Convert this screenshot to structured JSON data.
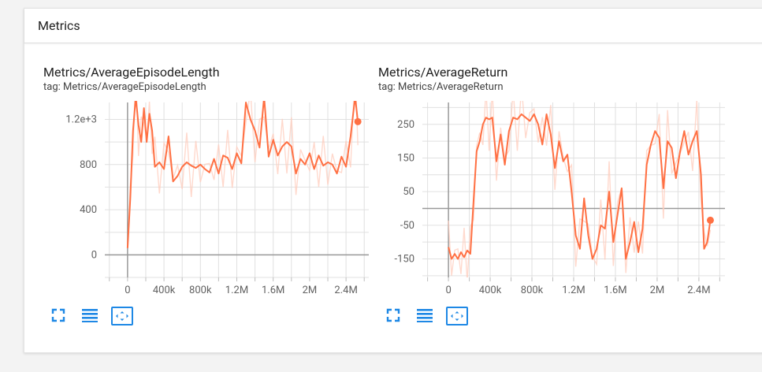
{
  "section": {
    "title": "Metrics"
  },
  "colors": {
    "line": "#ff7043",
    "line_raw": "#ffccbc",
    "grid": "#e0e0e0",
    "axis": "#999999",
    "icon": "#1e88e5"
  },
  "icons": [
    "fullscreen-icon",
    "toggle-log-scale-icon",
    "fit-domain-icon"
  ],
  "chart_data": [
    {
      "type": "line",
      "title": "Metrics/AverageEpisodeLength",
      "tag": "tag: Metrics/AverageEpisodeLength",
      "xlim": [
        -250000,
        2650000
      ],
      "ylim": [
        -200,
        1350
      ],
      "x_ticks": [
        0,
        400000,
        800000,
        1200000,
        1600000,
        2000000,
        2400000
      ],
      "x_tick_labels": [
        "0",
        "400k",
        "800k",
        "1.2M",
        "1.6M",
        "2M",
        "2.4M"
      ],
      "y_ticks": [
        0,
        400,
        800,
        1200
      ],
      "y_tick_labels": [
        "0",
        "400",
        "800",
        "1.2e+3"
      ],
      "series": [
        {
          "x": [
            0,
            30000,
            60000,
            90000,
            120000,
            150000,
            180000,
            210000,
            240000,
            270000,
            300000,
            350000,
            400000,
            450000,
            500000,
            550000,
            600000,
            650000,
            700000,
            750000,
            800000,
            850000,
            900000,
            950000,
            1000000,
            1050000,
            1100000,
            1150000,
            1200000,
            1250000,
            1300000,
            1350000,
            1400000,
            1450000,
            1500000,
            1550000,
            1600000,
            1650000,
            1700000,
            1750000,
            1800000,
            1850000,
            1900000,
            1950000,
            2000000,
            2050000,
            2100000,
            2150000,
            2200000,
            2250000,
            2300000,
            2350000,
            2400000,
            2450000,
            2500000,
            2530000
          ],
          "y": [
            60,
            500,
            1100,
            1400,
            1150,
            1000,
            1300,
            1000,
            1250,
            1100,
            780,
            820,
            760,
            1050,
            650,
            700,
            780,
            820,
            790,
            770,
            800,
            760,
            730,
            850,
            720,
            880,
            860,
            760,
            900,
            810,
            1350,
            1200,
            1100,
            950,
            1400,
            870,
            1020,
            880,
            960,
            1000,
            960,
            720,
            850,
            800,
            900,
            760,
            880,
            790,
            820,
            800,
            720,
            870,
            780,
            1050,
            1400,
            1180
          ]
        }
      ]
    },
    {
      "type": "line",
      "title": "Metrics/AverageReturn",
      "tag": "tag: Metrics/AverageReturn",
      "xlim": [
        -250000,
        2650000
      ],
      "ylim": [
        -205,
        315
      ],
      "x_ticks": [
        0,
        400000,
        800000,
        1200000,
        1600000,
        2000000,
        2400000
      ],
      "x_tick_labels": [
        "0",
        "400k",
        "800k",
        "1.2M",
        "1.6M",
        "2M",
        "2.4M"
      ],
      "y_ticks": [
        -150,
        -50,
        50,
        150,
        250
      ],
      "y_tick_labels": [
        "-150",
        "-50",
        "50",
        "150",
        "250"
      ],
      "series": [
        {
          "x": [
            0,
            30000,
            60000,
            90000,
            120000,
            150000,
            180000,
            210000,
            240000,
            270000,
            300000,
            330000,
            360000,
            390000,
            420000,
            460000,
            500000,
            540000,
            580000,
            620000,
            660000,
            700000,
            740000,
            780000,
            820000,
            860000,
            900000,
            940000,
            980000,
            1020000,
            1060000,
            1100000,
            1140000,
            1180000,
            1220000,
            1260000,
            1300000,
            1340000,
            1380000,
            1420000,
            1460000,
            1500000,
            1540000,
            1580000,
            1620000,
            1660000,
            1700000,
            1740000,
            1780000,
            1820000,
            1860000,
            1900000,
            1940000,
            1980000,
            2020000,
            2060000,
            2100000,
            2140000,
            2180000,
            2220000,
            2260000,
            2300000,
            2340000,
            2380000,
            2420000,
            2450000,
            2480000,
            2510000
          ],
          "y": [
            -115,
            -150,
            -135,
            -150,
            -130,
            -145,
            -125,
            -135,
            20,
            170,
            200,
            250,
            270,
            265,
            270,
            140,
            220,
            130,
            230,
            270,
            265,
            280,
            270,
            260,
            280,
            250,
            190,
            280,
            220,
            120,
            200,
            140,
            160,
            50,
            -80,
            -120,
            30,
            -80,
            -150,
            -120,
            -50,
            -60,
            50,
            -100,
            -20,
            60,
            -150,
            -100,
            -40,
            -130,
            -60,
            130,
            190,
            230,
            210,
            60,
            200,
            180,
            90,
            170,
            230,
            160,
            200,
            230,
            100,
            -120,
            -100,
            -35
          ]
        }
      ]
    }
  ]
}
